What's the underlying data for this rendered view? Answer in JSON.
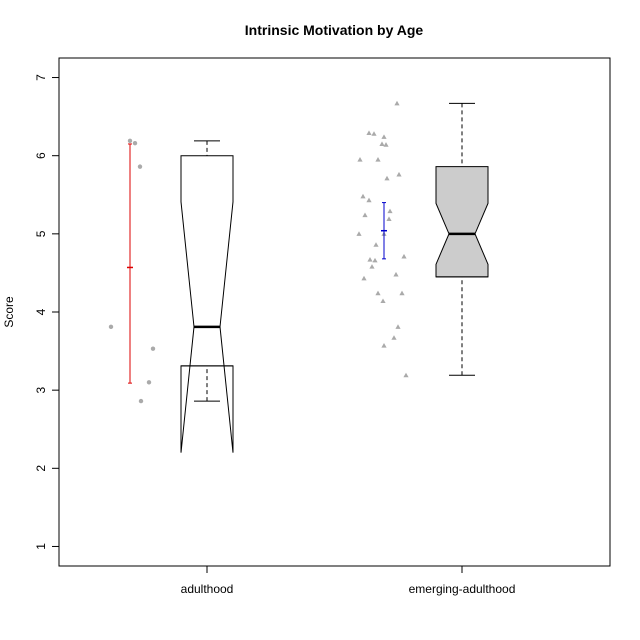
{
  "chart_data": {
    "type": "box",
    "title": "Intrinsic Motivation by Age",
    "xlabel": "",
    "ylabel": "Score",
    "ylim": [
      0.75,
      7.25
    ],
    "y_ticks": [
      "1",
      "2",
      "3",
      "4",
      "5",
      "6",
      "7"
    ],
    "categories": [
      "adulthood",
      "emerging-adulthood"
    ],
    "groups": [
      {
        "category": "adulthood",
        "notched": true,
        "box_fill": "#ffffff",
        "whisker_low": 2.86,
        "q1": 3.31,
        "median": 3.81,
        "q3": 6.0,
        "whisker_high": 6.19,
        "notch_low": 2.2,
        "notch_high": 5.41,
        "points": [
          6.19,
          6.16,
          5.86,
          3.81,
          3.53,
          3.1,
          2.86
        ],
        "point_marker": "circle",
        "point_color": "#aaaaaa",
        "summary_mean": 4.57,
        "summary_low": 3.09,
        "summary_high": 6.15,
        "summary_color": "#dd0000"
      },
      {
        "category": "emerging-adulthood",
        "notched": true,
        "box_fill": "#cccccc",
        "whisker_low": 3.19,
        "q1": 4.45,
        "median": 5.0,
        "q3": 5.86,
        "whisker_high": 6.67,
        "notch_low": 4.61,
        "notch_high": 5.39,
        "points": [
          6.67,
          6.29,
          6.28,
          6.24,
          6.15,
          6.14,
          5.95,
          5.95,
          5.76,
          5.71,
          5.48,
          5.43,
          5.29,
          5.24,
          5.19,
          5.0,
          5.0,
          4.86,
          4.71,
          4.67,
          4.66,
          4.58,
          4.48,
          4.43,
          4.24,
          4.24,
          4.14,
          3.81,
          3.67,
          3.57,
          3.19
        ],
        "point_marker": "triangle",
        "point_color": "#aaaaaa",
        "summary_mean": 5.04,
        "summary_low": 4.68,
        "summary_high": 5.4,
        "summary_color": "#0000cc"
      }
    ],
    "grid": false,
    "legend": "none"
  }
}
